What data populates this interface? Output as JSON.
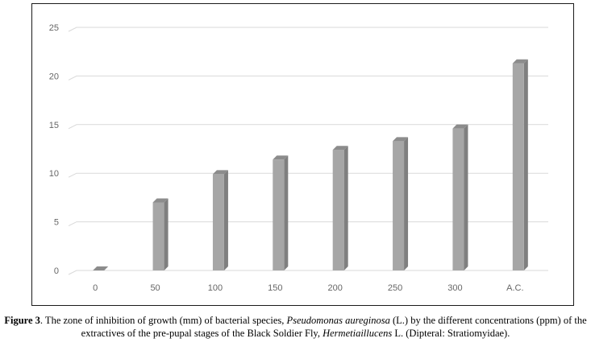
{
  "chart_data": {
    "type": "bar",
    "title": "",
    "xlabel": "",
    "ylabel": "",
    "categories": [
      "0",
      "50",
      "100",
      "150",
      "200",
      "250",
      "300",
      "A.C."
    ],
    "values": [
      0,
      7,
      9.9,
      11.4,
      12.4,
      13.3,
      14.6,
      21.3
    ],
    "ylim": [
      0,
      25
    ],
    "yticks": [
      0,
      5,
      10,
      15,
      20,
      25
    ],
    "grid": true,
    "legend": "none",
    "colors": {
      "bar_front": "#a6a6a6",
      "bar_side": "#7f7f7f",
      "bar_top": "#8c8c8c",
      "grid": "#d9d9d9"
    }
  },
  "caption": {
    "label": "Figure 3",
    "text_1": ". The zone of inhibition of growth (mm) of bacterial species, ",
    "species": "Pseudomonas aureginosa",
    "text_2": " (L.) by the different concentrations (ppm) of the extractives of the pre-pupal stages of the Black Soldier Fly, ",
    "insect": "Hermetiaillucens",
    "text_3": " L. (Dipteral: Stratiomyidae)."
  }
}
